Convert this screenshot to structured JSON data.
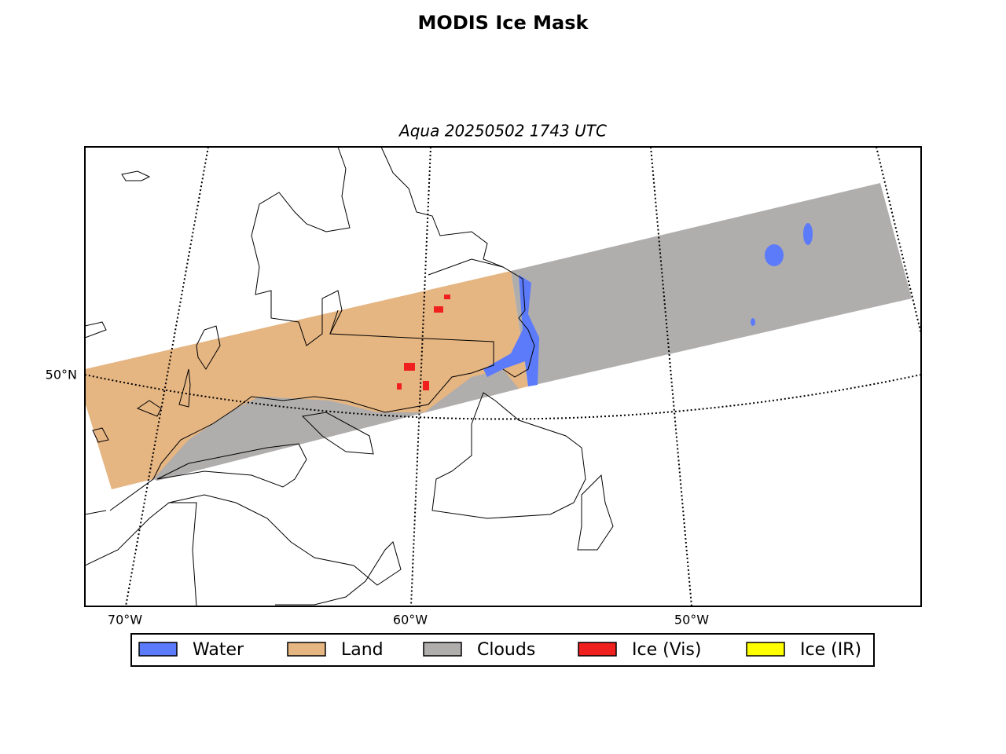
{
  "title": "MODIS Ice Mask",
  "subtitle": "Aqua 20250502 1743 UTC",
  "map": {
    "lon_labels": [
      "70°W",
      "60°W",
      "50°W"
    ],
    "lat_labels": [
      "50°N"
    ]
  },
  "legend": [
    {
      "name": "Water",
      "color": "#5b7bfb"
    },
    {
      "name": "Land",
      "color": "#e5b582"
    },
    {
      "name": "Clouds",
      "color": "#b0adad"
    },
    {
      "name": "Ice (Vis)",
      "color": "#f0201e"
    },
    {
      "name": "Ice (IR)",
      "color": "#ffff00"
    }
  ]
}
